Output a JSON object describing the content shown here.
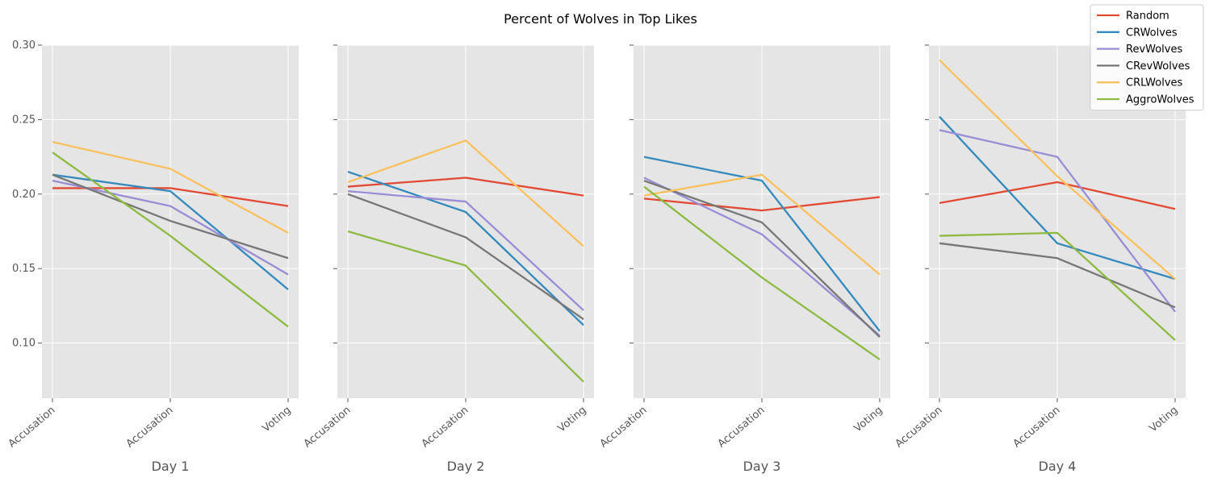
{
  "chart_data": {
    "type": "line",
    "title": "Percent of Wolves in Top Likes",
    "categories": [
      "Accusation",
      "Accusation",
      "Voting"
    ],
    "ylim": [
      0.063,
      0.3
    ],
    "yticks": [
      0.1,
      0.15,
      0.2,
      0.25,
      0.3
    ],
    "ytick_labels": [
      "0.10",
      "0.15",
      "0.20",
      "0.25",
      "0.30"
    ],
    "grid": true,
    "legend_position": "top-right",
    "panels": [
      {
        "xlabel": "Day 1",
        "series": [
          {
            "name": "Random",
            "color": "#E24A33",
            "values": [
              0.204,
              0.204,
              0.192
            ]
          },
          {
            "name": "CRWolves",
            "color": "#348ABD",
            "values": [
              0.213,
              0.202,
              0.136
            ]
          },
          {
            "name": "RevWolves",
            "color": "#988ED5",
            "values": [
              0.209,
              0.192,
              0.146
            ]
          },
          {
            "name": "CRevWolves",
            "color": "#777777",
            "values": [
              0.213,
              0.182,
              0.157
            ]
          },
          {
            "name": "CRLWolves",
            "color": "#FBC15E",
            "values": [
              0.235,
              0.217,
              0.174
            ]
          },
          {
            "name": "AggroWolves",
            "color": "#8EBA42",
            "values": [
              0.228,
              0.172,
              0.111
            ]
          }
        ]
      },
      {
        "xlabel": "Day 2",
        "series": [
          {
            "name": "Random",
            "color": "#E24A33",
            "values": [
              0.205,
              0.211,
              0.199
            ]
          },
          {
            "name": "CRWolves",
            "color": "#348ABD",
            "values": [
              0.215,
              0.188,
              0.112
            ]
          },
          {
            "name": "RevWolves",
            "color": "#988ED5",
            "values": [
              0.202,
              0.195,
              0.122
            ]
          },
          {
            "name": "CRevWolves",
            "color": "#777777",
            "values": [
              0.2,
              0.171,
              0.116
            ]
          },
          {
            "name": "CRLWolves",
            "color": "#FBC15E",
            "values": [
              0.208,
              0.236,
              0.165
            ]
          },
          {
            "name": "AggroWolves",
            "color": "#8EBA42",
            "values": [
              0.175,
              0.152,
              0.074
            ]
          }
        ]
      },
      {
        "xlabel": "Day 3",
        "series": [
          {
            "name": "Random",
            "color": "#E24A33",
            "values": [
              0.197,
              0.189,
              0.198
            ]
          },
          {
            "name": "CRWolves",
            "color": "#348ABD",
            "values": [
              0.225,
              0.209,
              0.108
            ]
          },
          {
            "name": "RevWolves",
            "color": "#988ED5",
            "values": [
              0.211,
              0.173,
              0.105
            ]
          },
          {
            "name": "CRevWolves",
            "color": "#777777",
            "values": [
              0.209,
              0.181,
              0.104
            ]
          },
          {
            "name": "CRLWolves",
            "color": "#FBC15E",
            "values": [
              0.199,
              0.213,
              0.146
            ]
          },
          {
            "name": "AggroWolves",
            "color": "#8EBA42",
            "values": [
              0.205,
              0.144,
              0.089
            ]
          }
        ]
      },
      {
        "xlabel": "Day 4",
        "series": [
          {
            "name": "Random",
            "color": "#E24A33",
            "values": [
              0.194,
              0.208,
              0.19
            ]
          },
          {
            "name": "CRWolves",
            "color": "#348ABD",
            "values": [
              0.252,
              0.167,
              0.143
            ]
          },
          {
            "name": "RevWolves",
            "color": "#988ED5",
            "values": [
              0.243,
              0.225,
              0.121
            ]
          },
          {
            "name": "CRevWolves",
            "color": "#777777",
            "values": [
              0.167,
              0.157,
              0.124
            ]
          },
          {
            "name": "CRLWolves",
            "color": "#FBC15E",
            "values": [
              0.29,
              0.212,
              0.143
            ]
          },
          {
            "name": "AggroWolves",
            "color": "#8EBA42",
            "values": [
              0.172,
              0.174,
              0.102
            ]
          }
        ]
      }
    ]
  }
}
